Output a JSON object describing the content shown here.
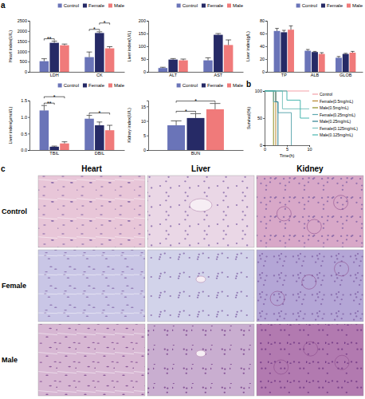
{
  "chart_data": [
    {
      "type": "bar",
      "y_label": "Heart index(U/L)",
      "categories": [
        "LDH",
        "CK"
      ],
      "series": [
        {
          "name": "Control",
          "color": "#6a74b8",
          "values": [
            520,
            720
          ],
          "errors": [
            120,
            250
          ]
        },
        {
          "name": "Female",
          "color": "#262a66",
          "values": [
            1420,
            1900
          ],
          "errors": [
            80,
            60
          ]
        },
        {
          "name": "Male",
          "color": "#f07a7a",
          "values": [
            1300,
            1150
          ],
          "errors": [
            60,
            80
          ]
        }
      ],
      "ylim": [
        0,
        2500
      ],
      "yticks": [
        0,
        500,
        1000,
        1500,
        2000,
        2500
      ],
      "legend": "top",
      "annotations": [
        {
          "text": "**",
          "category": 0,
          "series": [
            0,
            1
          ]
        },
        {
          "text": "*",
          "category": 1,
          "series": [
            0,
            1
          ]
        },
        {
          "text": "*",
          "category": 1,
          "series": [
            1,
            2
          ]
        }
      ]
    },
    {
      "type": "bar",
      "y_label": "Liver index(U/L)",
      "categories": [
        "ALT",
        "AST"
      ],
      "series": [
        {
          "name": "Control",
          "color": "#6a74b8",
          "values": [
            15,
            45
          ],
          "errors": [
            3,
            10
          ]
        },
        {
          "name": "Female",
          "color": "#262a66",
          "values": [
            48,
            145
          ],
          "errors": [
            4,
            5
          ]
        },
        {
          "name": "Male",
          "color": "#f07a7a",
          "values": [
            45,
            105
          ],
          "errors": [
            5,
            20
          ]
        }
      ],
      "ylim": [
        0,
        200
      ],
      "yticks": [
        0,
        50,
        100,
        150,
        200
      ],
      "legend": "top"
    },
    {
      "type": "bar",
      "y_label": "Liver index(g/L)",
      "categories": [
        "TP",
        "ALB",
        "GLOB"
      ],
      "series": [
        {
          "name": "Control",
          "color": "#6a74b8",
          "values": [
            64,
            33,
            22
          ],
          "errors": [
            4,
            2,
            2
          ]
        },
        {
          "name": "Female",
          "color": "#262a66",
          "values": [
            62,
            31,
            28
          ],
          "errors": [
            3,
            1,
            1
          ]
        },
        {
          "name": "Male",
          "color": "#f07a7a",
          "values": [
            66,
            28,
            30
          ],
          "errors": [
            6,
            2,
            2
          ]
        }
      ],
      "ylim": [
        0,
        80
      ],
      "yticks": [
        0,
        20,
        40,
        60,
        80
      ],
      "legend": "top"
    },
    {
      "type": "bar",
      "y_label": "Liver index(μmol/L)",
      "categories": [
        "TBIL",
        "DBIL"
      ],
      "series": [
        {
          "name": "Control",
          "color": "#6a74b8",
          "values": [
            1.2,
            0.95
          ],
          "errors": [
            0.15,
            0.1
          ]
        },
        {
          "name": "Female",
          "color": "#262a66",
          "values": [
            0.1,
            0.75
          ],
          "errors": [
            0.02,
            0.1
          ]
        },
        {
          "name": "Male",
          "color": "#f07a7a",
          "values": [
            0.2,
            0.6
          ],
          "errors": [
            0.05,
            0.15
          ]
        }
      ],
      "ylim": [
        0,
        1.5
      ],
      "yticks": [
        {
          "value": 0,
          "label": "0.0"
        },
        {
          "value": 0.5,
          "label": "0.5"
        },
        {
          "value": 1,
          "label": "1.0"
        },
        {
          "value": 1.5,
          "label": "1.5"
        }
      ],
      "legend": "top",
      "annotations": [
        {
          "text": "**",
          "category": 0,
          "series": [
            0,
            1
          ]
        },
        {
          "text": "*",
          "category": 0,
          "series": [
            0,
            2
          ]
        },
        {
          "text": "*",
          "category": 1,
          "series": [
            0,
            2
          ]
        }
      ]
    },
    {
      "type": "bar",
      "y_label": "Kidney index(U/L)",
      "categories": [
        "BUN"
      ],
      "series": [
        {
          "name": "Control",
          "color": "#6a74b8",
          "values": [
            8.5
          ],
          "errors": [
            1.5
          ]
        },
        {
          "name": "Female",
          "color": "#262a66",
          "values": [
            11
          ],
          "errors": [
            1.5
          ]
        },
        {
          "name": "Male",
          "color": "#f07a7a",
          "values": [
            14
          ],
          "errors": [
            2
          ]
        }
      ],
      "ylim": [
        0,
        17
      ],
      "yticks": [
        0,
        5,
        10,
        15
      ],
      "legend": "top",
      "annotations": [
        {
          "text": "*",
          "category": 0,
          "series": [
            0,
            1
          ]
        },
        {
          "text": "*",
          "category": 0,
          "series": [
            0,
            2
          ]
        }
      ]
    },
    {
      "type": "line",
      "line_style": "step",
      "x_label": "Time(h)",
      "y_label": "Survival(%)",
      "xlim": [
        0,
        10
      ],
      "xticks": [
        0,
        5,
        10
      ],
      "ylim": [
        0,
        100
      ],
      "yticks": [
        0,
        50,
        100
      ],
      "legend": "right",
      "series": [
        {
          "name": "Control",
          "color": "#f4a0a8",
          "x": [
            0,
            10
          ],
          "values": [
            100,
            100
          ]
        },
        {
          "name": "Female(0.5mg/mL)",
          "color": "#b5842a",
          "x": [
            0,
            2.5
          ],
          "values": [
            100,
            0
          ]
        },
        {
          "name": "Male(0.5mg/mL)",
          "color": "#8c8c1e",
          "x": [
            0,
            2
          ],
          "values": [
            100,
            0
          ]
        },
        {
          "name": "Female(0.25mg/mL)",
          "color": "#5fa8b0",
          "x": [
            0,
            2,
            3,
            6
          ],
          "values": [
            100,
            80,
            60,
            0
          ]
        },
        {
          "name": "Male(0.25mg/mL)",
          "color": "#2e7f8f",
          "x": [
            0,
            2.5,
            3
          ],
          "values": [
            100,
            80,
            0
          ]
        },
        {
          "name": "Female(0.125mg/mL)",
          "color": "#7fc4c0",
          "x": [
            0,
            4,
            10
          ],
          "values": [
            100,
            67,
            67
          ]
        },
        {
          "name": "Male(0.125mg/mL)",
          "color": "#48b6b0",
          "x": [
            0,
            5,
            8,
            10
          ],
          "values": [
            100,
            83,
            50,
            50
          ]
        }
      ]
    }
  ],
  "panel_labels": [
    "a",
    "b",
    "c"
  ],
  "histology": {
    "columns": [
      "Heart",
      "Liver",
      "Kidney"
    ],
    "rows": [
      "Control",
      "Female",
      "Male"
    ]
  }
}
